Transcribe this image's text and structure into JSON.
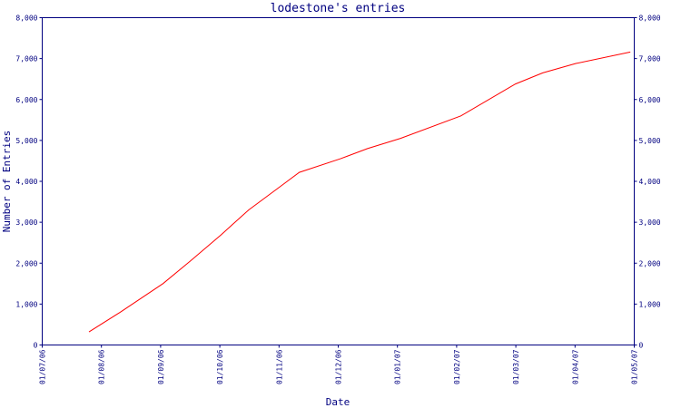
{
  "chart_data": {
    "type": "line",
    "title": "lodestone's entries",
    "xlabel": "Date",
    "ylabel": "Number of Entries",
    "x_ticks": [
      "01/07/06",
      "01/08/06",
      "01/09/06",
      "01/10/06",
      "01/11/06",
      "01/12/06",
      "01/01/07",
      "01/02/07",
      "01/03/07",
      "01/04/07",
      "01/05/07"
    ],
    "y_ticks": [
      "0",
      "1,000",
      "2,000",
      "3,000",
      "4,000",
      "5,000",
      "6,000",
      "7,000",
      "8,000"
    ],
    "ylim": [
      0,
      8000
    ],
    "xlim": [
      "2006-07-01",
      "2007-05-01"
    ],
    "grid": false,
    "series": [
      {
        "color": "#ff0000",
        "points": [
          {
            "x": "2006-07-25",
            "y": 320
          },
          {
            "x": "2006-08-10",
            "y": 800
          },
          {
            "x": "2006-09-01",
            "y": 1500
          },
          {
            "x": "2006-09-15",
            "y": 2050
          },
          {
            "x": "2006-10-01",
            "y": 2700
          },
          {
            "x": "2006-10-15",
            "y": 3300
          },
          {
            "x": "2006-11-01",
            "y": 3900
          },
          {
            "x": "2006-11-10",
            "y": 4220
          },
          {
            "x": "2006-12-01",
            "y": 4550
          },
          {
            "x": "2006-12-15",
            "y": 4800
          },
          {
            "x": "2007-01-01",
            "y": 5050
          },
          {
            "x": "2007-02-01",
            "y": 5600
          },
          {
            "x": "2007-03-01",
            "y": 6380
          },
          {
            "x": "2007-03-15",
            "y": 6650
          },
          {
            "x": "2007-04-01",
            "y": 6880
          },
          {
            "x": "2007-04-29",
            "y": 7160
          }
        ]
      }
    ]
  }
}
